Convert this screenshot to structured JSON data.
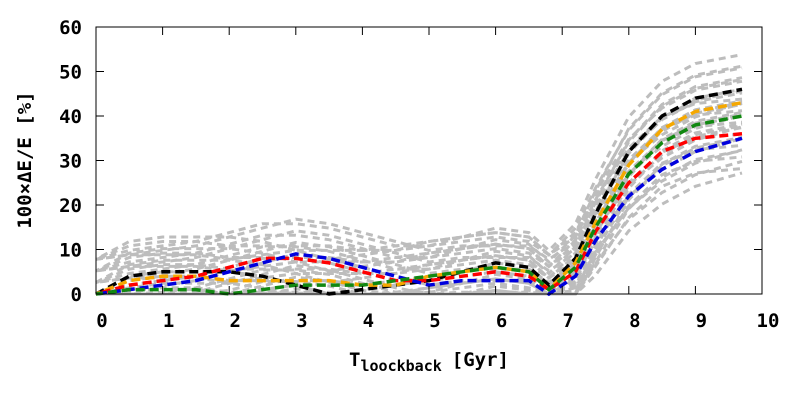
{
  "chart_data": {
    "type": "line",
    "title": "",
    "xlabel": "T",
    "xlabel_subscript": "loockback",
    "xlabel_unit": "[Gyr]",
    "ylabel": "100×ΔE/E [%]",
    "xlim": [
      0,
      10
    ],
    "ylim": [
      0,
      60
    ],
    "xticks": [
      "0",
      "1",
      "2",
      "3",
      "4",
      "5",
      "6",
      "7",
      "8",
      "9",
      "10"
    ],
    "yticks": [
      "0",
      "10",
      "20",
      "30",
      "40",
      "50",
      "60"
    ],
    "grid": false,
    "legend": "none",
    "line_style": "dashed",
    "series": [
      {
        "color": "#000000",
        "x": [
          0,
          0.5,
          1,
          1.5,
          2,
          2.5,
          3,
          3.5,
          4,
          4.5,
          5,
          5.5,
          6,
          6.5,
          6.8,
          7.2,
          7.5,
          8,
          8.5,
          9,
          9.7
        ],
        "y": [
          0,
          4,
          5,
          5,
          5,
          4,
          2,
          0,
          1,
          2,
          3,
          5,
          7,
          6,
          2,
          8,
          18,
          32,
          40,
          44,
          46
        ]
      },
      {
        "color": "#f5a800",
        "x": [
          0,
          0.5,
          1,
          1.5,
          2,
          2.5,
          3,
          3.5,
          4,
          4.5,
          5,
          5.5,
          6,
          6.5,
          6.8,
          7.2,
          7.5,
          8,
          8.5,
          9,
          9.7
        ],
        "y": [
          0,
          3,
          4,
          4,
          3,
          3,
          3,
          3,
          2,
          2,
          4,
          5,
          6,
          5,
          1,
          7,
          16,
          29,
          37,
          41,
          43
        ]
      },
      {
        "color": "#ff0000",
        "x": [
          0,
          0.5,
          1,
          1.5,
          2,
          2.5,
          3,
          3.5,
          4,
          4.5,
          5,
          5.5,
          6,
          6.5,
          6.8,
          7.2,
          7.5,
          8,
          8.5,
          9,
          9.7
        ],
        "y": [
          0,
          2,
          3,
          4,
          6,
          8,
          8,
          7,
          5,
          3,
          3,
          4,
          5,
          4,
          1,
          5,
          14,
          25,
          32,
          35,
          36
        ]
      },
      {
        "color": "#0000dd",
        "x": [
          0,
          0.5,
          1,
          1.5,
          2,
          2.5,
          3,
          3.5,
          4,
          4.5,
          5,
          5.5,
          6,
          6.5,
          6.8,
          7.2,
          7.5,
          8,
          8.5,
          9,
          9.7
        ],
        "y": [
          0,
          1,
          2,
          3,
          5,
          7,
          9,
          8,
          6,
          4,
          2,
          3,
          3,
          3,
          0,
          4,
          12,
          22,
          28,
          32,
          35
        ]
      },
      {
        "color": "#118811",
        "x": [
          0,
          0.5,
          1,
          1.5,
          2,
          2.5,
          3,
          3.5,
          4,
          4.5,
          5,
          5.5,
          6,
          6.5,
          6.8,
          7.2,
          7.5,
          8,
          8.5,
          9,
          9.7
        ],
        "y": [
          0,
          1,
          1,
          1,
          0,
          1,
          2,
          2,
          2,
          3,
          4,
          5,
          6,
          5,
          1,
          6,
          15,
          27,
          34,
          38,
          40
        ]
      }
    ]
  }
}
